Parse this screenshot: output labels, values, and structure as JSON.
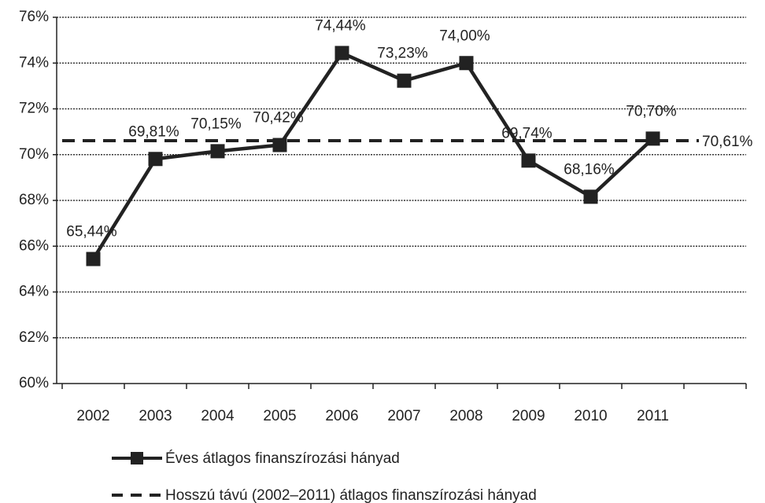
{
  "chart_data": {
    "type": "line",
    "categories": [
      "2002",
      "2003",
      "2004",
      "2005",
      "2006",
      "2007",
      "2008",
      "2009",
      "2010",
      "2011",
      null
    ],
    "series": [
      {
        "name": "Éves átlagos finanszírozási hányad",
        "color": "#222222",
        "values": [
          65.44,
          69.81,
          70.15,
          70.42,
          74.44,
          73.23,
          74.0,
          69.74,
          68.16,
          70.7,
          null
        ],
        "value_labels": [
          "65,44%",
          "69,81%",
          "70,15%",
          "70,42%",
          "74,44%",
          "73,23%",
          "74,00%",
          "69,74%",
          "68,16%",
          "70,70%",
          null
        ]
      }
    ],
    "reference_line": {
      "name": "Hosszú távú (2002–2011) átlagos finanszírozási hányad",
      "value": 70.61,
      "label": "70,61%",
      "color": "#222222"
    },
    "ylim": [
      60,
      76
    ],
    "yticks": [
      {
        "value": 60,
        "label": "60%"
      },
      {
        "value": 62,
        "label": "62%"
      },
      {
        "value": 64,
        "label": "64%"
      },
      {
        "value": 66,
        "label": "66%"
      },
      {
        "value": 68,
        "label": "68%"
      },
      {
        "value": 70,
        "label": "70%"
      },
      {
        "value": 72,
        "label": "72%"
      },
      {
        "value": 74,
        "label": "74%"
      },
      {
        "value": 76,
        "label": "76%"
      }
    ],
    "grid": true
  }
}
